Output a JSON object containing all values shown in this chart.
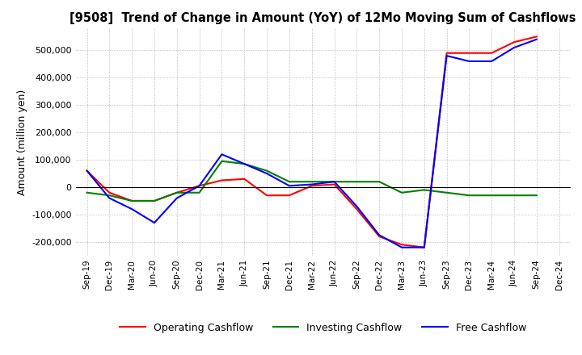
{
  "title": "[9508]  Trend of Change in Amount (YoY) of 12Mo Moving Sum of Cashflows",
  "ylabel": "Amount (million yen)",
  "ylim": [
    -250000,
    580000
  ],
  "yticks": [
    -200000,
    -100000,
    0,
    100000,
    200000,
    300000,
    400000,
    500000
  ],
  "dates": [
    "Sep-19",
    "Dec-19",
    "Mar-20",
    "Jun-20",
    "Sep-20",
    "Dec-20",
    "Mar-21",
    "Jun-21",
    "Sep-21",
    "Dec-21",
    "Mar-22",
    "Jun-22",
    "Sep-22",
    "Dec-22",
    "Mar-23",
    "Jun-23",
    "Sep-23",
    "Dec-23",
    "Mar-24",
    "Jun-24",
    "Sep-24",
    "Dec-24"
  ],
  "operating": [
    60000,
    -20000,
    -50000,
    -50000,
    -20000,
    5000,
    25000,
    30000,
    -30000,
    -30000,
    5000,
    10000,
    -80000,
    -180000,
    -210000,
    -220000,
    490000,
    490000,
    490000,
    530000,
    550000,
    null
  ],
  "investing": [
    -20000,
    -30000,
    -50000,
    -50000,
    -20000,
    -20000,
    95000,
    85000,
    60000,
    20000,
    20000,
    20000,
    20000,
    20000,
    -20000,
    -10000,
    -20000,
    -30000,
    -30000,
    -30000,
    -30000,
    null
  ],
  "free": [
    60000,
    -40000,
    -80000,
    -130000,
    -40000,
    5000,
    120000,
    85000,
    50000,
    5000,
    10000,
    20000,
    -70000,
    -175000,
    -220000,
    -220000,
    480000,
    460000,
    460000,
    510000,
    540000,
    null
  ],
  "operating_color": "#FF0000",
  "investing_color": "#008000",
  "free_color": "#0000FF",
  "bg_color": "#FFFFFF",
  "grid_color": "#AAAAAA",
  "legend_labels": [
    "Operating Cashflow",
    "Investing Cashflow",
    "Free Cashflow"
  ]
}
